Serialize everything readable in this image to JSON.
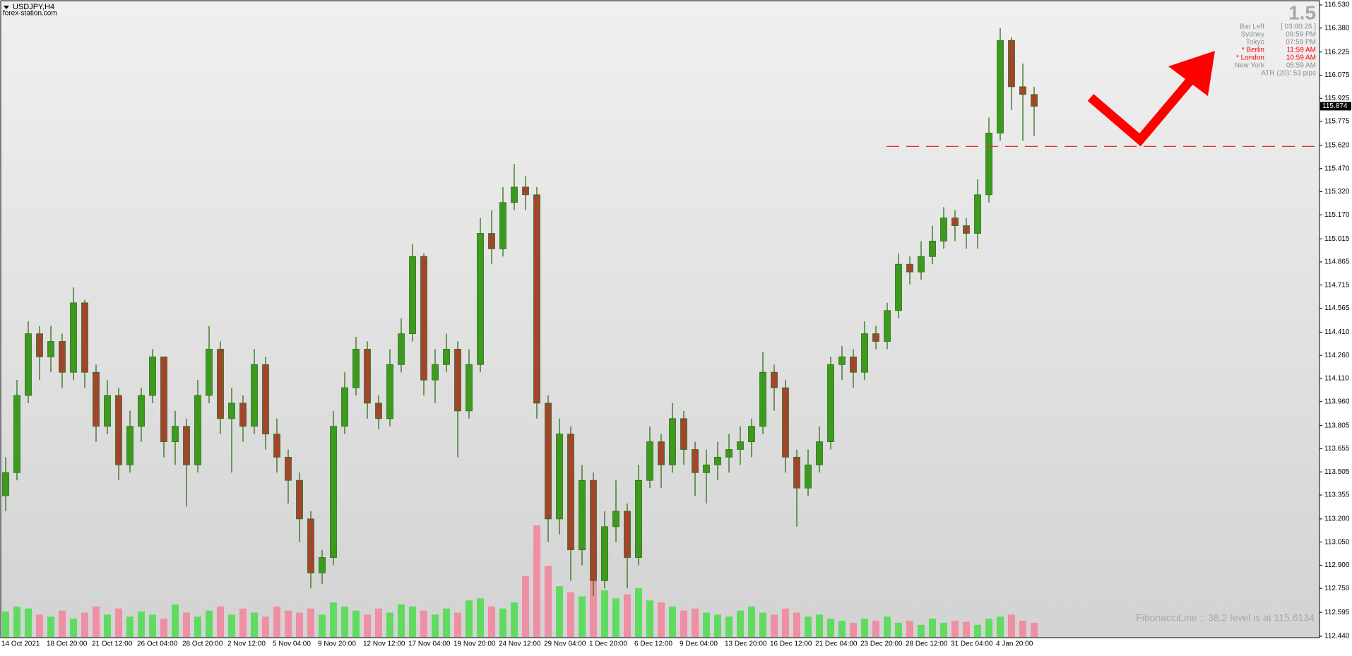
{
  "chart_data": {
    "type": "candlestick",
    "title": "USDJPY,H4",
    "subtitle": "forex-station.com",
    "categories": [
      "14 Oct 2021",
      null,
      null,
      null,
      "18 Oct 20:00",
      null,
      null,
      null,
      "21 Oct 12:00",
      null,
      null,
      null,
      "26 Oct 04:00",
      null,
      null,
      null,
      "28 Oct 20:00",
      null,
      null,
      null,
      "2 Nov 12:00",
      null,
      null,
      null,
      "5 Nov 04:00",
      null,
      null,
      null,
      "9 Nov 20:00",
      null,
      null,
      null,
      "12 Nov 12:00",
      null,
      null,
      null,
      "17 Nov 04:00",
      null,
      null,
      null,
      "19 Nov 20:00",
      null,
      null,
      null,
      "24 Nov 12:00",
      null,
      null,
      null,
      "29 Nov 04:00",
      null,
      null,
      null,
      "1 Dec 20:00",
      null,
      null,
      null,
      "6 Dec 12:00",
      null,
      null,
      null,
      "9 Dec 04:00",
      null,
      null,
      null,
      "13 Dec 20:00",
      null,
      null,
      null,
      "16 Dec 12:00",
      null,
      null,
      null,
      "21 Dec 04:00",
      null,
      null,
      null,
      "23 Dec 20:00",
      null,
      null,
      null,
      "28 Dec 12:00",
      null,
      null,
      null,
      "31 Dec 04:00",
      null,
      null,
      null,
      "4 Jan 20:00",
      null,
      null,
      null
    ],
    "open": [
      113.35,
      113.5,
      114.0,
      114.4,
      114.25,
      114.35,
      114.15,
      114.6,
      114.15,
      113.8,
      114.0,
      113.55,
      113.8,
      114.0,
      114.25,
      113.7,
      113.8,
      113.55,
      114.0,
      114.3,
      113.85,
      113.95,
      113.8,
      114.2,
      113.75,
      113.6,
      113.45,
      113.2,
      112.85,
      112.95,
      113.8,
      114.05,
      114.3,
      113.95,
      113.85,
      114.2,
      114.4,
      114.9,
      114.1,
      114.2,
      114.3,
      113.9,
      114.2,
      115.05,
      114.95,
      115.25,
      115.35,
      115.3,
      113.95,
      113.2,
      113.75,
      113.0,
      113.45,
      112.8,
      113.15,
      113.25,
      112.95,
      113.45,
      113.7,
      113.55,
      113.85,
      113.65,
      113.5,
      113.55,
      113.6,
      113.65,
      113.7,
      113.8,
      114.15,
      114.05,
      113.6,
      113.4,
      113.55,
      113.7,
      114.2,
      114.25,
      114.15,
      114.4,
      114.35,
      114.55,
      114.85,
      114.8,
      114.9,
      115.0,
      115.15,
      115.1,
      115.05,
      115.3,
      115.7,
      116.3,
      116.0,
      115.95
    ],
    "high": [
      113.6,
      114.1,
      114.48,
      114.45,
      114.45,
      114.4,
      114.7,
      114.62,
      114.2,
      114.1,
      114.05,
      113.9,
      114.05,
      114.3,
      114.25,
      113.9,
      113.85,
      114.1,
      114.45,
      114.35,
      114.05,
      114.0,
      114.3,
      114.25,
      113.85,
      113.65,
      113.5,
      113.25,
      113.0,
      113.9,
      114.15,
      114.38,
      114.35,
      114.0,
      114.3,
      114.5,
      114.98,
      114.92,
      114.3,
      114.4,
      114.35,
      114.3,
      115.15,
      115.2,
      115.35,
      115.5,
      115.42,
      115.35,
      114.0,
      113.85,
      113.8,
      113.55,
      113.5,
      113.25,
      113.45,
      113.3,
      113.55,
      113.8,
      113.75,
      113.95,
      113.9,
      113.7,
      113.65,
      113.7,
      113.75,
      113.8,
      113.85,
      114.28,
      114.2,
      114.1,
      113.65,
      113.65,
      113.8,
      114.25,
      114.32,
      114.3,
      114.48,
      114.45,
      114.6,
      114.92,
      114.9,
      115.0,
      115.1,
      115.22,
      115.2,
      115.15,
      115.4,
      115.8,
      116.38,
      116.32,
      116.15,
      116.0
    ],
    "low": [
      113.25,
      113.45,
      113.95,
      114.1,
      114.15,
      114.05,
      114.1,
      114.05,
      113.7,
      113.75,
      113.45,
      113.5,
      113.7,
      113.95,
      113.6,
      113.55,
      113.28,
      113.5,
      113.95,
      113.75,
      113.5,
      113.7,
      113.75,
      113.65,
      113.5,
      113.3,
      113.05,
      112.75,
      112.78,
      112.9,
      113.75,
      114.0,
      113.85,
      113.78,
      113.8,
      114.15,
      114.35,
      114.0,
      113.95,
      114.15,
      113.6,
      113.85,
      114.15,
      114.85,
      114.9,
      115.2,
      115.2,
      113.85,
      113.05,
      113.1,
      112.8,
      112.9,
      112.7,
      112.75,
      113.05,
      112.75,
      112.9,
      113.4,
      113.4,
      113.5,
      113.55,
      113.35,
      113.3,
      113.45,
      113.5,
      113.55,
      113.6,
      113.75,
      113.9,
      113.5,
      113.15,
      113.35,
      113.5,
      113.65,
      114.1,
      114.05,
      114.1,
      114.3,
      114.3,
      114.5,
      114.72,
      114.75,
      114.85,
      114.95,
      115.0,
      114.95,
      114.95,
      115.25,
      115.65,
      115.85,
      115.65,
      115.68
    ],
    "close": [
      113.5,
      114.0,
      114.4,
      114.25,
      114.35,
      114.15,
      114.6,
      114.15,
      113.8,
      114.0,
      113.55,
      113.8,
      114.0,
      114.25,
      113.7,
      113.8,
      113.55,
      114.0,
      114.3,
      113.85,
      113.95,
      113.8,
      114.2,
      113.75,
      113.6,
      113.45,
      113.2,
      112.85,
      112.95,
      113.8,
      114.05,
      114.3,
      113.95,
      113.85,
      114.2,
      114.4,
      114.9,
      114.1,
      114.2,
      114.3,
      113.9,
      114.2,
      115.05,
      114.95,
      115.25,
      115.35,
      115.3,
      113.95,
      113.2,
      113.75,
      113.0,
      113.45,
      112.8,
      113.15,
      113.25,
      112.95,
      113.45,
      113.7,
      113.55,
      113.85,
      113.65,
      113.5,
      113.55,
      113.6,
      113.65,
      113.7,
      113.8,
      114.15,
      114.05,
      113.6,
      113.4,
      113.55,
      113.7,
      114.2,
      114.25,
      114.15,
      114.4,
      114.35,
      114.55,
      114.85,
      114.8,
      114.9,
      115.0,
      115.15,
      115.1,
      115.05,
      115.3,
      115.7,
      116.3,
      116.0,
      115.95,
      115.874
    ],
    "volume": [
      25,
      30,
      28,
      22,
      20,
      26,
      18,
      24,
      30,
      22,
      28,
      20,
      25,
      22,
      18,
      32,
      24,
      20,
      26,
      30,
      22,
      28,
      24,
      20,
      30,
      26,
      24,
      28,
      22,
      34,
      30,
      26,
      22,
      28,
      24,
      32,
      30,
      26,
      22,
      28,
      24,
      36,
      38,
      30,
      28,
      34,
      60,
      110,
      70,
      50,
      44,
      40,
      56,
      46,
      38,
      42,
      48,
      36,
      34,
      30,
      26,
      28,
      24,
      22,
      20,
      26,
      30,
      24,
      22,
      28,
      24,
      20,
      22,
      18,
      16,
      14,
      18,
      16,
      20,
      14,
      16,
      12,
      18,
      14,
      16,
      15,
      12,
      18,
      20,
      22,
      16,
      14
    ],
    "up_color": "#3c9b1e",
    "down_color": "#a3452e",
    "wick_color": "#2c6e17",
    "volume_up_color": "#5fdc5f",
    "volume_down_color": "#ef8fa4",
    "ylim": [
      112.44,
      116.53
    ],
    "yticks": [
      {
        "value": 116.53,
        "label": "116.530"
      },
      {
        "value": 116.38,
        "label": "116.380"
      },
      {
        "value": 116.225,
        "label": "116.225"
      },
      {
        "value": 116.075,
        "label": "116.075"
      },
      {
        "value": 115.925,
        "label": "115.925"
      },
      {
        "value": 115.775,
        "label": "115.775"
      },
      {
        "value": 115.62,
        "label": "115.620"
      },
      {
        "value": 115.47,
        "label": "115.470"
      },
      {
        "value": 115.32,
        "label": "115.320"
      },
      {
        "value": 115.17,
        "label": "115.170"
      },
      115.015,
      114.865,
      114.715,
      114.565,
      {
        "value": 114.41,
        "label": "114.410"
      },
      {
        "value": 114.26,
        "label": "114.260"
      },
      {
        "value": 114.11,
        "label": "114.110"
      },
      {
        "value": 113.96,
        "label": "113.960"
      },
      113.805,
      113.655,
      113.505,
      113.355,
      {
        "value": 113.2,
        "label": "113.200"
      },
      {
        "value": 113.05,
        "label": "113.050"
      },
      {
        "value": 112.9,
        "label": "112.900"
      },
      {
        "value": 112.75,
        "label": "112.750"
      },
      112.595,
      {
        "value": 112.44,
        "label": "112.440"
      }
    ],
    "current_price": 115.874,
    "fib_level": 115.6134,
    "fib_color": "#e03030",
    "fib_text": "FibonacciLine :: 38.2 level is at 115.6134"
  },
  "panel": {
    "spread": "1.5",
    "rows": [
      {
        "label": "Bar Left",
        "value": "[ 03:00:26 ]",
        "color": "#909090"
      },
      {
        "label": "Sydney",
        "value": "09:59 PM",
        "color": "#909090"
      },
      {
        "label": "Tokyo",
        "value": "07:59 PM",
        "color": "#909090"
      },
      {
        "label": "* Berlin",
        "value": "11:59 AM",
        "color": "#ff0000"
      },
      {
        "label": "* London",
        "value": "10:59 AM",
        "color": "#ff0000"
      },
      {
        "label": "New York",
        "value": "05:59 AM",
        "color": "#909090"
      }
    ],
    "atr": "ATR (20): 53 pips"
  }
}
